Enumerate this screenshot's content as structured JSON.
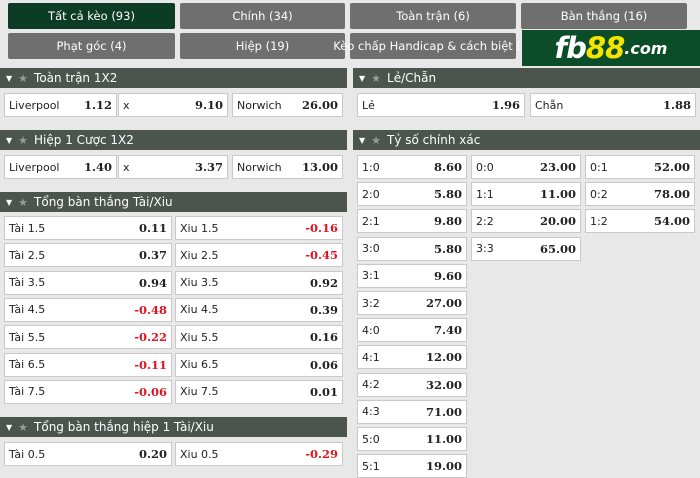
{
  "tabs": [
    {
      "label": "Tất cả kèo (93)",
      "active": true
    },
    {
      "label": "Chính (34)"
    },
    {
      "label": "Toàn trận (6)"
    },
    {
      "label": "Bàn thắng (16)"
    },
    {
      "label": "Phạt góc (4)"
    },
    {
      "label": "Hiệp (19)"
    },
    {
      "label": "Kèo chấp Handicap & cách biệt (5)"
    }
  ],
  "logo": {
    "a": "fb",
    "b": "88",
    "c": ".com"
  },
  "colors": {
    "active_tab": "#0c3b26",
    "tab": "#6f6f6f",
    "header": "#4b544d",
    "negative": "#e0141e",
    "logo_bg": "#0a4d28"
  },
  "sections": {
    "full_1x2": {
      "title": "Toàn trận 1X2",
      "cells": [
        [
          "Liverpool",
          "1.12"
        ],
        [
          "x",
          "9.10"
        ],
        [
          "Norwich",
          "26.00"
        ]
      ]
    },
    "half1_1x2": {
      "title": "Hiệp 1 Cược 1X2",
      "cells": [
        [
          "Liverpool",
          "1.40"
        ],
        [
          "x",
          "3.37"
        ],
        [
          "Norwich",
          "13.00"
        ]
      ]
    },
    "total_ou": {
      "title": "Tổng bàn thắng Tài/Xiu",
      "rows": [
        [
          [
            "Tài 1.5",
            "0.11"
          ],
          [
            "Xiu 1.5",
            "-0.16"
          ]
        ],
        [
          [
            "Tài 2.5",
            "0.37"
          ],
          [
            "Xiu 2.5",
            "-0.45"
          ]
        ],
        [
          [
            "Tài 3.5",
            "0.94"
          ],
          [
            "Xiu 3.5",
            "0.92"
          ]
        ],
        [
          [
            "Tài 4.5",
            "-0.48"
          ],
          [
            "Xiu 4.5",
            "0.39"
          ]
        ],
        [
          [
            "Tài 5.5",
            "-0.22"
          ],
          [
            "Xiu 5.5",
            "0.16"
          ]
        ],
        [
          [
            "Tài 6.5",
            "-0.11"
          ],
          [
            "Xiu 6.5",
            "0.06"
          ]
        ],
        [
          [
            "Tài 7.5",
            "-0.06"
          ],
          [
            "Xiu 7.5",
            "0.01"
          ]
        ]
      ]
    },
    "half1_ou": {
      "title": "Tổng bàn thắng hiệp 1 Tài/Xiu",
      "rows": [
        [
          [
            "Tài 0.5",
            "0.20"
          ],
          [
            "Xiu 0.5",
            "-0.29"
          ]
        ]
      ]
    },
    "odd_even": {
      "title": "Lẻ/Chẵn",
      "cells": [
        [
          "Lẻ",
          "1.96"
        ],
        [
          "Chẵn",
          "1.88"
        ]
      ]
    },
    "correct_score": {
      "title": "Tỷ số chính xác",
      "rows": [
        [
          [
            "1:0",
            "8.60"
          ],
          [
            "0:0",
            "23.00"
          ],
          [
            "0:1",
            "52.00"
          ]
        ],
        [
          [
            "2:0",
            "5.80"
          ],
          [
            "1:1",
            "11.00"
          ],
          [
            "0:2",
            "78.00"
          ]
        ],
        [
          [
            "2:1",
            "9.80"
          ],
          [
            "2:2",
            "20.00"
          ],
          [
            "1:2",
            "54.00"
          ]
        ],
        [
          [
            "3:0",
            "5.80"
          ],
          [
            "3:3",
            "65.00"
          ]
        ],
        [
          [
            "3:1",
            "9.60"
          ]
        ],
        [
          [
            "3:2",
            "27.00"
          ]
        ],
        [
          [
            "4:0",
            "7.40"
          ]
        ],
        [
          [
            "4:1",
            "12.00"
          ]
        ],
        [
          [
            "4:2",
            "32.00"
          ]
        ],
        [
          [
            "4:3",
            "71.00"
          ]
        ],
        [
          [
            "5:0",
            "11.00"
          ]
        ],
        [
          [
            "5:1",
            "19.00"
          ]
        ]
      ]
    }
  }
}
